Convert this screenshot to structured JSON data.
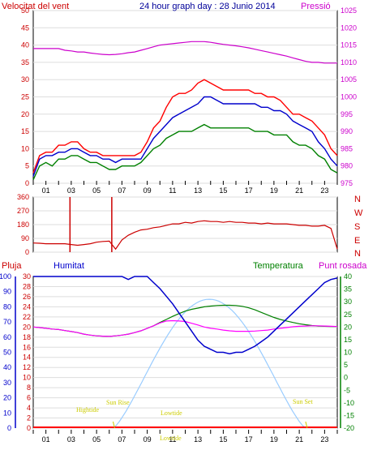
{
  "header": {
    "left_label": "Velocitat del vent",
    "title": "24 hour graph day : 28 Junio 2014",
    "right_label": "Pressió"
  },
  "direction_letters": [
    "N",
    "W",
    "S",
    "E",
    "N"
  ],
  "bottom_labels": {
    "rain": "Pluja",
    "humidity": "Humitat",
    "temperature": "Temperatura",
    "dewpoint": "Punt rosada"
  },
  "annotations": {
    "high_tide": "Hightide",
    "sun_rise": "Sun Rise",
    "low_tide_1": "Lowtide",
    "low_tide_2": "Lowtide",
    "sun_set": "Sun Set"
  },
  "colors": {
    "wind_gust": "#ff0000",
    "wind_avg": "#0000cc",
    "wind_low": "#008000",
    "pressure": "#cc00cc",
    "direction": "#cc0000",
    "humidity": "#0000cc",
    "temperature": "#008000",
    "dewpoint": "#ff00ff",
    "solar": "#99ccff",
    "rain": "#ff0000",
    "grid": "#dddddd",
    "frame": "#000000"
  },
  "chart_data": [
    {
      "type": "line",
      "name": "wind",
      "x_ticks": [
        "01",
        "03",
        "05",
        "07",
        "09",
        "11",
        "13",
        "15",
        "17",
        "19",
        "21",
        "23"
      ],
      "y_left_ticks": [
        0,
        5,
        10,
        15,
        20,
        25,
        30,
        35,
        40,
        45,
        50
      ],
      "y_right_ticks": [
        975,
        980,
        985,
        990,
        995,
        1000,
        1005,
        1010,
        1015,
        1020,
        1025
      ],
      "ylim_left": [
        0,
        50
      ],
      "ylim_right": [
        975,
        1025
      ],
      "hours": [
        0,
        0.5,
        1,
        1.5,
        2,
        2.5,
        3,
        3.5,
        4,
        4.5,
        5,
        5.5,
        6,
        6.5,
        7,
        7.5,
        8,
        8.5,
        9,
        9.5,
        10,
        10.5,
        11,
        11.5,
        12,
        12.5,
        13,
        13.5,
        14,
        14.5,
        15,
        15.5,
        16,
        16.5,
        17,
        17.5,
        18,
        18.5,
        19,
        19.5,
        20,
        20.5,
        21,
        21.5,
        22,
        22.5,
        23,
        23.5,
        24
      ],
      "series": [
        {
          "values": [
            3,
            8,
            9,
            9,
            11,
            11,
            12,
            12,
            10,
            9,
            9,
            8,
            8,
            8,
            8,
            8,
            8,
            9,
            12,
            16,
            18,
            22,
            25,
            26,
            26,
            27,
            29,
            30,
            29,
            28,
            27,
            27,
            27,
            27,
            27,
            26,
            26,
            25,
            25,
            24,
            22,
            20,
            20,
            19,
            18,
            16,
            14,
            10,
            8
          ]
        },
        {
          "values": [
            2,
            7,
            8,
            8,
            9,
            9,
            10,
            10,
            9,
            8,
            8,
            7,
            7,
            6,
            7,
            7,
            7,
            7,
            10,
            13,
            15,
            17,
            19,
            20,
            21,
            22,
            23,
            25,
            25,
            24,
            23,
            23,
            23,
            23,
            23,
            23,
            22,
            22,
            21,
            21,
            20,
            18,
            17,
            16,
            15,
            12,
            10,
            7,
            5
          ]
        },
        {
          "values": [
            1,
            5,
            6,
            5,
            7,
            7,
            8,
            8,
            7,
            6,
            6,
            5,
            4,
            4,
            5,
            5,
            5,
            6,
            8,
            10,
            11,
            13,
            14,
            15,
            15,
            15,
            16,
            17,
            16,
            16,
            16,
            16,
            16,
            16,
            16,
            15,
            15,
            15,
            14,
            14,
            14,
            12,
            11,
            11,
            10,
            8,
            7,
            4,
            3
          ]
        },
        {
          "values": [
            1014,
            1014,
            1014,
            1014,
            1014,
            1013.5,
            1013.3,
            1013,
            1013,
            1012.7,
            1012.5,
            1012.3,
            1012.2,
            1012.3,
            1012.5,
            1012.8,
            1013,
            1013.5,
            1014,
            1014.5,
            1015,
            1015.2,
            1015.4,
            1015.6,
            1015.8,
            1016,
            1016,
            1016,
            1015.8,
            1015.5,
            1015.2,
            1015,
            1014.8,
            1014.5,
            1014.2,
            1013.8,
            1013.4,
            1013,
            1012.6,
            1012.2,
            1011.8,
            1011.3,
            1010.8,
            1010.3,
            1010,
            1010,
            1009.8,
            1009.8,
            1009.8
          ]
        }
      ]
    },
    {
      "type": "line",
      "name": "wind_direction",
      "x_ticks": [
        "01",
        "03",
        "05",
        "07",
        "09",
        "11",
        "13",
        "15",
        "17",
        "19",
        "21",
        "23"
      ],
      "y_ticks": [
        0,
        90,
        180,
        270,
        360
      ],
      "ylim": [
        0,
        360
      ],
      "hours": [
        0,
        0.5,
        1,
        1.5,
        2,
        2.5,
        3,
        3.5,
        4,
        4.5,
        5,
        5.5,
        6,
        6.5,
        7,
        7.5,
        8,
        8.5,
        9,
        9.5,
        10,
        10.5,
        11,
        11.5,
        12,
        12.5,
        13,
        13.5,
        14,
        14.5,
        15,
        15.5,
        16,
        16.5,
        17,
        17.5,
        18,
        18.5,
        19,
        19.5,
        20,
        20.5,
        21,
        21.5,
        22,
        22.5,
        23,
        23.5,
        24
      ],
      "series": [
        {
          "values": [
            60,
            58,
            55,
            55,
            55,
            55,
            50,
            45,
            50,
            55,
            65,
            70,
            72,
            20,
            80,
            110,
            130,
            145,
            150,
            160,
            165,
            175,
            185,
            185,
            195,
            190,
            200,
            205,
            200,
            200,
            195,
            200,
            195,
            195,
            190,
            190,
            185,
            190,
            185,
            185,
            185,
            180,
            175,
            175,
            170,
            170,
            175,
            155,
            20
          ]
        }
      ],
      "spikes": [
        {
          "x": 2.9,
          "y": 360
        },
        {
          "x": 6.2,
          "y": 360
        }
      ]
    },
    {
      "type": "line",
      "name": "humidity_temperature",
      "x_ticks": [
        "01",
        "03",
        "05",
        "07",
        "09",
        "11",
        "13",
        "15",
        "17",
        "19",
        "21",
        "23"
      ],
      "y_rain_ticks": [
        0,
        2,
        4,
        6,
        8,
        10,
        12,
        14,
        16,
        18,
        20,
        22,
        24,
        26,
        28,
        30
      ],
      "y_humidity_ticks": [
        0,
        10,
        20,
        30,
        40,
        50,
        60,
        70,
        80,
        90,
        100
      ],
      "y_temp_ticks": [
        -20,
        -15,
        -10,
        -5,
        0,
        5,
        10,
        15,
        20,
        25,
        30,
        35,
        40
      ],
      "ylim_humidity": [
        0,
        100
      ],
      "ylim_temp": [
        -20,
        40
      ],
      "hours": [
        0,
        0.5,
        1,
        1.5,
        2,
        2.5,
        3,
        3.5,
        4,
        4.5,
        5,
        5.5,
        6,
        6.5,
        7,
        7.5,
        8,
        8.5,
        9,
        9.5,
        10,
        10.5,
        11,
        11.5,
        12,
        12.5,
        13,
        13.5,
        14,
        14.5,
        15,
        15.5,
        16,
        16.5,
        17,
        17.5,
        18,
        18.5,
        19,
        19.5,
        20,
        20.5,
        21,
        21.5,
        22,
        22.5,
        23,
        23.5,
        24
      ],
      "series": [
        {
          "values": [
            100,
            100,
            100,
            100,
            100,
            100,
            100,
            100,
            100,
            100,
            100,
            100,
            100,
            100,
            100,
            98,
            100,
            100,
            100,
            96,
            92,
            87,
            82,
            76,
            70,
            64,
            58,
            54,
            52,
            50,
            50,
            49,
            50,
            50,
            52,
            54,
            57,
            60,
            64,
            68,
            72,
            76,
            80,
            84,
            88,
            92,
            96,
            98,
            99
          ]
        },
        {
          "values": [
            20,
            19.8,
            19.5,
            19.2,
            19,
            18.6,
            18.2,
            17.8,
            17.2,
            16.8,
            16.5,
            16.4,
            16.3,
            16.5,
            16.8,
            17.2,
            17.8,
            18.5,
            19.5,
            20.5,
            21.8,
            23,
            24.2,
            25.3,
            26.3,
            27,
            27.5,
            28,
            28.3,
            28.5,
            28.6,
            28.6,
            28.5,
            28.2,
            27.6,
            26.8,
            25.8,
            24.8,
            23.8,
            23,
            22.4,
            21.8,
            21.3,
            20.9,
            20.6,
            20.4,
            20.3,
            20.2,
            20.2
          ]
        },
        {
          "values": [
            20,
            19.8,
            19.5,
            19.2,
            19,
            18.6,
            18.2,
            17.8,
            17.2,
            16.8,
            16.5,
            16.4,
            16.3,
            16.5,
            16.8,
            17.2,
            17.8,
            18.5,
            19.5,
            20.5,
            21.6,
            22.4,
            22.5,
            22.4,
            22.2,
            21.5,
            20.8,
            20,
            19.5,
            19.2,
            18.8,
            18.5,
            18.3,
            18.3,
            18.3,
            18.4,
            18.6,
            18.8,
            19.2,
            19.5,
            19.8,
            20.1,
            20.3,
            20.4,
            20.5,
            20.5,
            20.4,
            20.3,
            20.2
          ]
        }
      ],
      "solar": {
        "start": 6.3,
        "peak": 13.9,
        "end": 21.5,
        "peak_humidity_scale": 85
      },
      "rain_total": 0
    }
  ]
}
